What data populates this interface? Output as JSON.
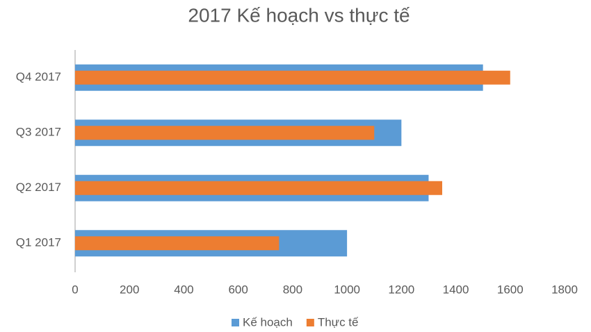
{
  "chart_data": {
    "type": "bar",
    "title": "2017 Kế hoạch vs thực tế",
    "categories": [
      "Q1 2017",
      "Q2 2017",
      "Q3 2017",
      "Q4 2017"
    ],
    "series": [
      {
        "name": "Kế hoạch",
        "color": "#5b9bd5",
        "values": [
          1000,
          1300,
          1200,
          1500
        ]
      },
      {
        "name": "Thực tế",
        "color": "#ed7d31",
        "values": [
          750,
          1350,
          1100,
          1600
        ]
      }
    ],
    "xlim": [
      0,
      1800
    ],
    "xticks": [
      0,
      200,
      400,
      600,
      800,
      1000,
      1200,
      1400,
      1600,
      1800
    ],
    "legend": "bottom"
  }
}
